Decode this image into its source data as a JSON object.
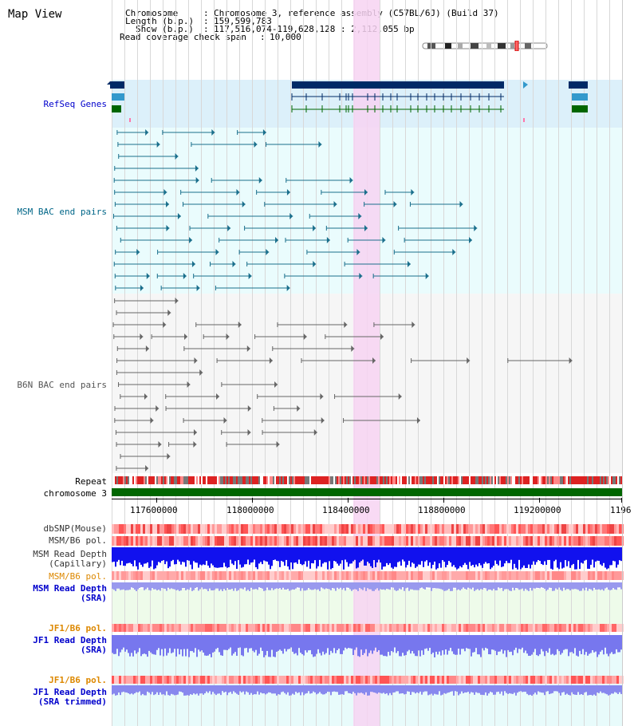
{
  "page_title": "Map View",
  "info": {
    "chromosome_key": "Chromosome",
    "chromosome_val": "Chromosome 3, reference assembly (C57BL/6J) (Build 37)",
    "length_key": "Length (b.p.)",
    "length_val": "159,599,783",
    "show_key": "Show (b.p.)",
    "show_val": "117,516,074-119,628,128 : 2,112,055 bp",
    "coverage_key": "Read coverage check span",
    "coverage_val": "10,000"
  },
  "tracks": {
    "refseq": "RefSeq Genes",
    "msm_bac": "MSM BAC end pairs",
    "b6n_bac": "B6N BAC end pairs",
    "repeat": "Repeat",
    "chromosome": "chromosome 3",
    "dbsnp": "dbSNP(Mouse)",
    "msm_b6_pol1": "MSM/B6 pol.",
    "msm_read_depth_cap_1": "MSM Read Depth",
    "msm_read_depth_cap_2": "(Capillary)",
    "msm_b6_pol2": "MSM/B6 pol.",
    "msm_read_depth_sra_1": "MSM Read Depth",
    "msm_read_depth_sra_2": "(SRA)",
    "jf1_b6_pol1": "JF1/B6 pol.",
    "jf1_read_depth_sra_1": "JF1 Read Depth",
    "jf1_read_depth_sra_2": "(SRA)",
    "jf1_b6_pol2": "JF1/B6 pol.",
    "jf1_read_depth_trim_1": "JF1 Read Depth",
    "jf1_read_depth_trim_2": "(SRA trimmed)"
  },
  "axis": {
    "ticks": [
      "117600000",
      "118000000",
      "118400000",
      "118800000",
      "119200000",
      "1196"
    ]
  },
  "colors": {
    "refseq_label": "#0000cc",
    "msm_label": "#006688",
    "b6n_label": "#555555",
    "orange_label": "#dd8800",
    "blue_label": "#0000cc",
    "highlight": "#f7d4f2",
    "gene_dark": "#002a66",
    "gene_mid": "#3399cc",
    "gene_green": "#006600",
    "msm_pair": "#1a6f8c",
    "b6n_pair": "#666666",
    "chromosome_bar": "#006600"
  }
}
